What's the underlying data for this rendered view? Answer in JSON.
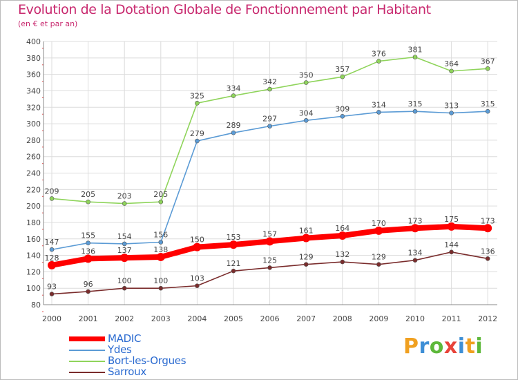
{
  "title": "Evolution de la Dotation Globale de Fonctionnement par Habitant",
  "subtitle": "(en € et par an)",
  "logo": {
    "text": "Proxiti",
    "colors": [
      "#f0a020",
      "#3e8fd6",
      "#5db83a",
      "#e8443a",
      "#3e8fd6",
      "#f0a020",
      "#5db83a"
    ]
  },
  "chart_data": {
    "type": "line",
    "title": "Evolution de la Dotation Globale de Fonctionnement par Habitant",
    "subtitle": "(en € et par an)",
    "xlabel": "",
    "ylabel": "",
    "x": [
      "2000",
      "2001",
      "2002",
      "2003",
      "2004",
      "2005",
      "2006",
      "2007",
      "2008",
      "2009",
      "2010",
      "2011",
      "2012"
    ],
    "ylim": [
      80,
      400
    ],
    "yticks": [
      "80",
      "100",
      "120",
      "140",
      "160",
      "180",
      "200",
      "220",
      "240",
      "260",
      "280",
      "300",
      "320",
      "340",
      "360",
      "380",
      "400"
    ],
    "grid": true,
    "legend_position": "bottom-left",
    "series": [
      {
        "name": "MADIC",
        "color": "#ff0000",
        "emphasis": true,
        "values": [
          128,
          136,
          137,
          138,
          150,
          153,
          157,
          161,
          164,
          170,
          173,
          175,
          173
        ],
        "labels": [
          "128",
          "136",
          "137",
          "138",
          "150",
          "153",
          "157",
          "161",
          "164",
          "170",
          "173",
          "175",
          "173"
        ]
      },
      {
        "name": "Ydes",
        "color": "#5b9bd5",
        "emphasis": false,
        "values": [
          147,
          155,
          154,
          156,
          279,
          289,
          297,
          304,
          309,
          314,
          315,
          313,
          315
        ],
        "labels": [
          "147",
          "155",
          "154",
          "156",
          "279",
          "289",
          "297",
          "304",
          "309",
          "314",
          "315",
          "313",
          "315"
        ]
      },
      {
        "name": "Bort-les-Orgues",
        "color": "#8fd45b",
        "emphasis": false,
        "values": [
          209,
          205,
          203,
          205,
          325,
          334,
          342,
          350,
          357,
          376,
          381,
          364,
          367
        ],
        "labels": [
          "209",
          "205",
          "203",
          "205",
          "325",
          "334",
          "342",
          "350",
          "357",
          "376",
          "381",
          "364",
          "367"
        ]
      },
      {
        "name": "Sarroux",
        "color": "#7a2c2c",
        "emphasis": false,
        "values": [
          93,
          96,
          100,
          100,
          103,
          121,
          125,
          129,
          132,
          129,
          134,
          144,
          136
        ],
        "labels": [
          "93",
          "96",
          "100",
          "100",
          "103",
          "121",
          "125",
          "129",
          "132",
          "129",
          "134",
          "144",
          "136"
        ]
      }
    ]
  }
}
